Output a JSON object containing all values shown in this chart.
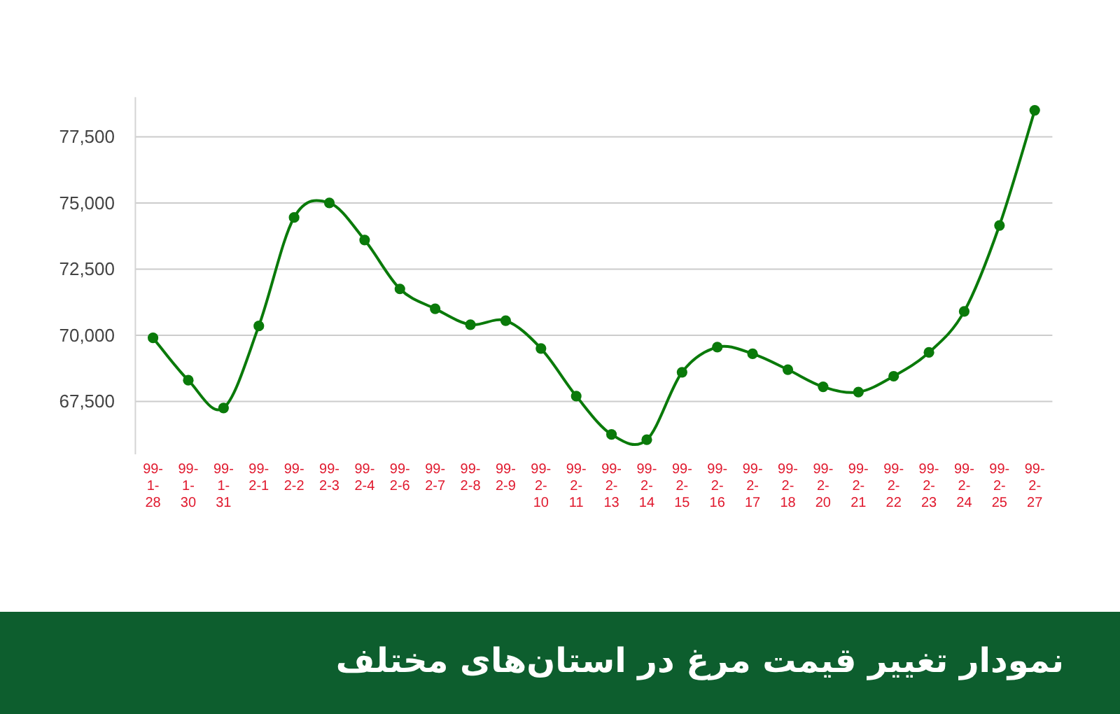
{
  "chart_data": {
    "type": "line",
    "title": "نمودار تغییر قیمت مرغ در استان‌های مختلف",
    "categories": [
      "99-1-28",
      "99-1-30",
      "99-1-31",
      "99-2-1",
      "99-2-2",
      "99-2-3",
      "99-2-4",
      "99-2-6",
      "99-2-7",
      "99-2-8",
      "99-2-9",
      "99-2-10",
      "99-2-11",
      "99-2-13",
      "99-2-14",
      "99-2-15",
      "99-2-16",
      "99-2-17",
      "99-2-18",
      "99-2-20",
      "99-2-21",
      "99-2-22",
      "99-2-23",
      "99-2-24",
      "99-2-25",
      "99-2-27"
    ],
    "series": [
      {
        "color": "#0a7a0a",
        "values": [
          69900,
          68300,
          67250,
          70350,
          74450,
          75000,
          73600,
          71750,
          71000,
          70400,
          70550,
          69500,
          67700,
          66250,
          66050,
          68600,
          69550,
          69300,
          68700,
          68050,
          67850,
          68450,
          69350,
          70900,
          74150,
          78500
        ]
      }
    ],
    "ylim": [
      65500,
      79000
    ],
    "yticks": [
      {
        "value": 67500,
        "label": "67,500"
      },
      {
        "value": 70000,
        "label": "70,000"
      },
      {
        "value": 72500,
        "label": "72,500"
      },
      {
        "value": 75000,
        "label": "75,000"
      },
      {
        "value": 77500,
        "label": "77,500"
      }
    ],
    "grid": "y",
    "marker": "circle",
    "line_style": "solid"
  }
}
